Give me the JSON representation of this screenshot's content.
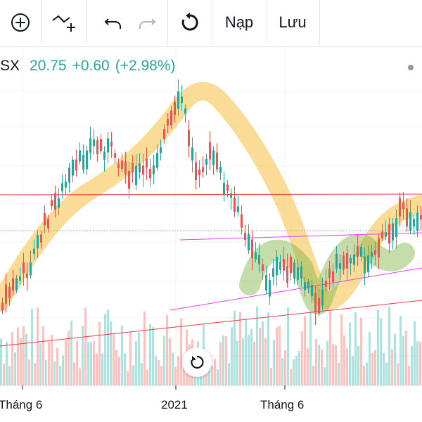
{
  "toolbar": {
    "add_label": "add-indicator",
    "compare_label": "compare-symbol",
    "undo_label": "undo",
    "redo_label": "redo",
    "reload_label": "reload",
    "load_label": "Nạp",
    "save_label": "Lưu"
  },
  "ticker": {
    "symbol": "SX",
    "price": "20.75",
    "change": "+0.60",
    "change_pct": "(+2.98%)"
  },
  "colors": {
    "up": "#26a69a",
    "down": "#ef5350",
    "highlight_yellow": "#f5c042",
    "highlight_green": "#7cb342",
    "resistance_line": "#f23645",
    "trend_magenta": "#e040fb"
  },
  "chart_data": {
    "type": "candlestick",
    "x_tick_labels": [
      "Tháng 6",
      "2021",
      "Tháng 6"
    ],
    "last_price": 20.75,
    "price_change": 0.6,
    "price_change_pct": 2.98,
    "trend_hint": "rise to peak near 2021, fall, consolidation and recovery"
  }
}
